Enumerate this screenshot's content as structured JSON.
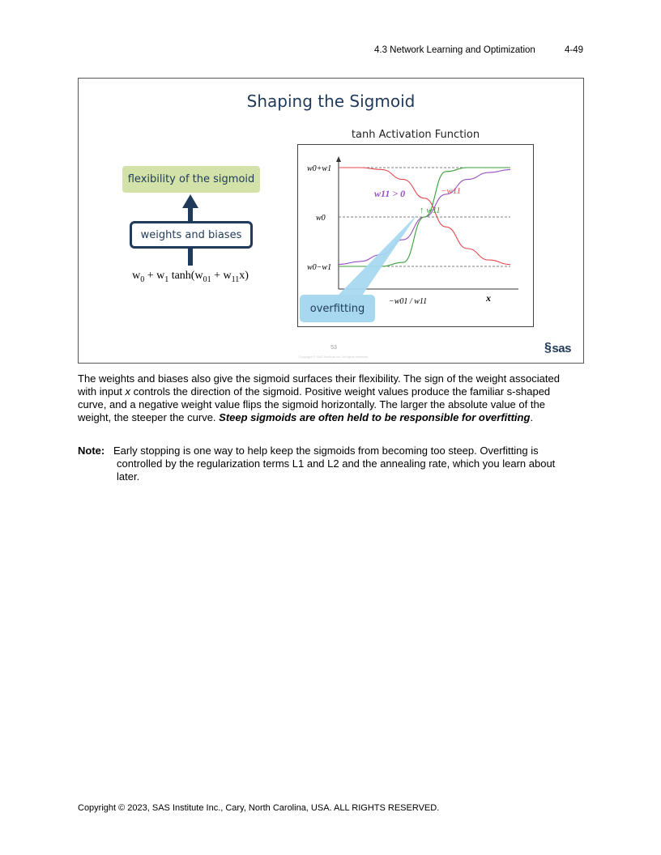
{
  "header": {
    "section": "4.3  Network Learning and Optimization",
    "page": "4-49"
  },
  "slide": {
    "title": "Shaping the Sigmoid",
    "chart_title": "tanh Activation Function",
    "flex_label": "flexibility of the sigmoid",
    "wb_label": "weights and biases",
    "formula": {
      "p1": "w",
      "s1": "0",
      "p2": " + w",
      "s2": "1",
      "p3": " tanh(w",
      "s3": "01",
      "p4": " + w",
      "s4": "11",
      "p5": "x)"
    },
    "overfit_label": "overfitting",
    "slide_number": "53",
    "slide_copyright": "Copyright © SAS Institute Inc. All rights reserved.",
    "logo": "sas"
  },
  "chart_data": {
    "type": "line",
    "title": "tanh Activation Function",
    "xlabel": "x",
    "y_ticks": [
      "w0+w1",
      "w0",
      "w0−w1"
    ],
    "x_tick": "−w01 / w11",
    "annotations": [
      "w11 > 0",
      "−w11",
      "↑ w11"
    ],
    "series": [
      {
        "name": "w11 > 0",
        "color": "#9b4fc0",
        "x": [
          -4,
          -3,
          -2,
          -1,
          0,
          1,
          2,
          3,
          4
        ],
        "y": [
          -0.96,
          -0.9,
          -0.76,
          -0.46,
          0,
          0.46,
          0.76,
          0.9,
          0.96
        ]
      },
      {
        "name": "−w11",
        "color": "#e5484d",
        "x": [
          -4,
          -3,
          -2,
          -1,
          0,
          1,
          2,
          3,
          4
        ],
        "y": [
          1.0,
          1.0,
          0.96,
          0.76,
          0.38,
          -0.2,
          -0.64,
          -0.87,
          -0.96
        ]
      },
      {
        "name": "↑ w11",
        "color": "#3a9d3a",
        "x": [
          -4,
          -3,
          -2,
          -1,
          0,
          1,
          2,
          3,
          4
        ],
        "y": [
          -1.0,
          -1.0,
          -1.0,
          -0.92,
          0,
          0.92,
          1.0,
          1.0,
          1.0
        ]
      }
    ],
    "ylim": [
      -1,
      1
    ],
    "grid": "dashed reference lines at w0+w1, w0, w0−w1"
  },
  "body": {
    "p1_a": "The weights and biases also give the sigmoid surfaces their flexibility. The sign of the weight associated with input ",
    "p1_x": "x",
    "p1_b": " controls the direction of the sigmoid. Positive weight values produce the familiar s-shaped curve, and a negative weight value flips the sigmoid horizontally. The larger the absolute value of the weight, the steeper the curve. ",
    "p1_bold": "Steep sigmoids are often held to be responsible for overfitting",
    "p1_end": "."
  },
  "note": {
    "label": "Note:",
    "line1": "Early stopping is one way to help keep the sigmoids from becoming too steep. Overfitting is",
    "rest": "controlled by the regularization terms L1 and L2 and the annealing rate, which you learn about later."
  },
  "footer": {
    "copyright": "Copyright © 2023, SAS Institute Inc., Cary, North Carolina, USA. ALL RIGHTS RESERVED."
  }
}
